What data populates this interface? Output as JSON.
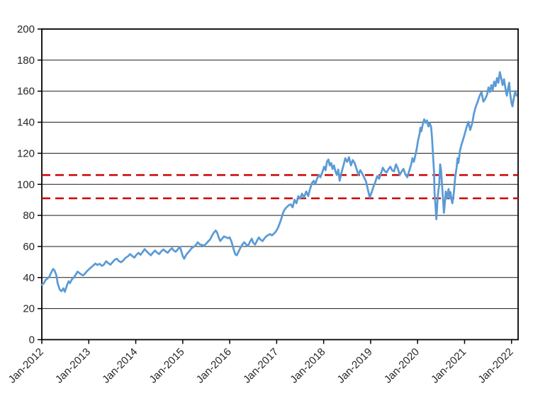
{
  "chart_data": {
    "type": "line",
    "title": "",
    "xlabel": "",
    "ylabel": "",
    "grid": "horizontal",
    "background_color": "#FFFFFF",
    "axis_color": "#000000",
    "gridline_color": "#1a1a1a",
    "x_axis": {
      "min": 2012.0,
      "max": 2022.14,
      "ticks": [
        2012,
        2013,
        2014,
        2015,
        2016,
        2017,
        2018,
        2019,
        2020,
        2021,
        2022
      ],
      "tick_labels": [
        "Jan-2012",
        "Jan-2013",
        "Jan-2014",
        "Jan-2015",
        "Jan-2016",
        "Jan-2017",
        "Jan-2018",
        "Jan-2019",
        "Jan-2020",
        "Jan-2021",
        "Jan-2022"
      ],
      "label_rotation_deg": -45
    },
    "y_axis": {
      "min": 0,
      "max": 200,
      "tick_step": 20,
      "tick_labels": [
        "0",
        "20",
        "40",
        "60",
        "80",
        "100",
        "120",
        "140",
        "160",
        "180",
        "200"
      ]
    },
    "reference_lines": [
      {
        "name": "upper-reference-line",
        "value": 106,
        "color": "#CC0000",
        "style": "dashed"
      },
      {
        "name": "lower-reference-line",
        "value": 91,
        "color": "#CC0000",
        "style": "dashed"
      }
    ],
    "series": [
      {
        "name": "price-series",
        "color": "#5B9BD5",
        "line_width": 2.75,
        "points": [
          [
            2012.0,
            35.3
          ],
          [
            2012.04,
            36.2
          ],
          [
            2012.08,
            38.4
          ],
          [
            2012.12,
            39.3
          ],
          [
            2012.16,
            40.6
          ],
          [
            2012.2,
            43.2
          ],
          [
            2012.24,
            45.5
          ],
          [
            2012.27,
            44.6
          ],
          [
            2012.31,
            41.5
          ],
          [
            2012.34,
            36.0
          ],
          [
            2012.38,
            32.3
          ],
          [
            2012.42,
            31.2
          ],
          [
            2012.46,
            33.0
          ],
          [
            2012.49,
            30.8
          ],
          [
            2012.53,
            34.5
          ],
          [
            2012.57,
            37.6
          ],
          [
            2012.6,
            36.4
          ],
          [
            2012.64,
            38.8
          ],
          [
            2012.68,
            39.9
          ],
          [
            2012.72,
            41.8
          ],
          [
            2012.76,
            43.8
          ],
          [
            2012.8,
            42.9
          ],
          [
            2012.84,
            41.9
          ],
          [
            2012.88,
            41.4
          ],
          [
            2012.92,
            42.6
          ],
          [
            2012.96,
            44.0
          ],
          [
            2013.0,
            45.2
          ],
          [
            2013.04,
            46.3
          ],
          [
            2013.09,
            47.6
          ],
          [
            2013.14,
            49.0
          ],
          [
            2013.18,
            48.1
          ],
          [
            2013.23,
            48.8
          ],
          [
            2013.28,
            47.5
          ],
          [
            2013.32,
            48.3
          ],
          [
            2013.37,
            50.5
          ],
          [
            2013.41,
            49.4
          ],
          [
            2013.46,
            48.3
          ],
          [
            2013.51,
            50.0
          ],
          [
            2013.55,
            51.4
          ],
          [
            2013.6,
            52.1
          ],
          [
            2013.64,
            50.6
          ],
          [
            2013.69,
            49.8
          ],
          [
            2013.74,
            51.2
          ],
          [
            2013.78,
            52.7
          ],
          [
            2013.83,
            53.6
          ],
          [
            2013.88,
            55.1
          ],
          [
            2013.92,
            54.0
          ],
          [
            2013.97,
            52.8
          ],
          [
            2014.01,
            54.5
          ],
          [
            2014.06,
            55.9
          ],
          [
            2014.1,
            54.6
          ],
          [
            2014.15,
            56.6
          ],
          [
            2014.19,
            58.3
          ],
          [
            2014.23,
            56.9
          ],
          [
            2014.28,
            55.4
          ],
          [
            2014.32,
            54.3
          ],
          [
            2014.36,
            55.8
          ],
          [
            2014.41,
            57.4
          ],
          [
            2014.45,
            56.1
          ],
          [
            2014.5,
            55.1
          ],
          [
            2014.54,
            56.8
          ],
          [
            2014.59,
            58.1
          ],
          [
            2014.63,
            56.9
          ],
          [
            2014.68,
            55.9
          ],
          [
            2014.72,
            57.5
          ],
          [
            2014.77,
            58.9
          ],
          [
            2014.81,
            57.4
          ],
          [
            2014.85,
            56.6
          ],
          [
            2014.9,
            58.4
          ],
          [
            2014.94,
            59.7
          ],
          [
            2014.97,
            57.0
          ],
          [
            2015.0,
            53.9
          ],
          [
            2015.03,
            52.1
          ],
          [
            2015.07,
            54.4
          ],
          [
            2015.11,
            55.9
          ],
          [
            2015.15,
            57.4
          ],
          [
            2015.19,
            58.9
          ],
          [
            2015.24,
            59.9
          ],
          [
            2015.28,
            60.9
          ],
          [
            2015.32,
            62.7
          ],
          [
            2015.36,
            61.4
          ],
          [
            2015.41,
            61.0
          ],
          [
            2015.45,
            60.4
          ],
          [
            2015.5,
            61.9
          ],
          [
            2015.54,
            63.2
          ],
          [
            2015.58,
            64.4
          ],
          [
            2015.62,
            66.8
          ],
          [
            2015.66,
            68.8
          ],
          [
            2015.7,
            70.3
          ],
          [
            2015.73,
            69.1
          ],
          [
            2015.77,
            65.5
          ],
          [
            2015.8,
            63.5
          ],
          [
            2015.84,
            65.1
          ],
          [
            2015.88,
            66.5
          ],
          [
            2015.92,
            65.9
          ],
          [
            2015.96,
            65.3
          ],
          [
            2016.0,
            65.8
          ],
          [
            2016.04,
            63.0
          ],
          [
            2016.08,
            58.5
          ],
          [
            2016.12,
            54.9
          ],
          [
            2016.15,
            54.3
          ],
          [
            2016.19,
            56.8
          ],
          [
            2016.23,
            59.2
          ],
          [
            2016.27,
            61.3
          ],
          [
            2016.31,
            62.7
          ],
          [
            2016.35,
            61.2
          ],
          [
            2016.39,
            60.4
          ],
          [
            2016.43,
            62.9
          ],
          [
            2016.47,
            65.0
          ],
          [
            2016.5,
            62.4
          ],
          [
            2016.54,
            61.2
          ],
          [
            2016.58,
            63.6
          ],
          [
            2016.62,
            65.8
          ],
          [
            2016.66,
            64.3
          ],
          [
            2016.7,
            63.5
          ],
          [
            2016.74,
            65.2
          ],
          [
            2016.78,
            66.6
          ],
          [
            2016.82,
            67.3
          ],
          [
            2016.86,
            68.0
          ],
          [
            2016.9,
            67.1
          ],
          [
            2016.94,
            68.2
          ],
          [
            2016.98,
            69.5
          ],
          [
            2017.02,
            71.5
          ],
          [
            2017.06,
            74.5
          ],
          [
            2017.1,
            78.0
          ],
          [
            2017.14,
            82.0
          ],
          [
            2017.18,
            84.2
          ],
          [
            2017.22,
            85.5
          ],
          [
            2017.26,
            86.6
          ],
          [
            2017.3,
            87.1
          ],
          [
            2017.34,
            85.2
          ],
          [
            2017.38,
            90.1
          ],
          [
            2017.42,
            87.8
          ],
          [
            2017.46,
            92.4
          ],
          [
            2017.5,
            90.9
          ],
          [
            2017.54,
            94.0
          ],
          [
            2017.58,
            91.6
          ],
          [
            2017.63,
            95.4
          ],
          [
            2017.67,
            92.4
          ],
          [
            2017.71,
            96.9
          ],
          [
            2017.75,
            100.8
          ],
          [
            2017.79,
            102.3
          ],
          [
            2017.82,
            100.0
          ],
          [
            2017.86,
            103.8
          ],
          [
            2017.9,
            106.1
          ],
          [
            2017.93,
            104.6
          ],
          [
            2017.97,
            107.6
          ],
          [
            2018.01,
            111.4
          ],
          [
            2018.04,
            109.1
          ],
          [
            2018.07,
            114.5
          ],
          [
            2018.1,
            116.0
          ],
          [
            2018.13,
            112.2
          ],
          [
            2018.16,
            113.7
          ],
          [
            2018.19,
            109.9
          ],
          [
            2018.22,
            112.2
          ],
          [
            2018.25,
            108.4
          ],
          [
            2018.28,
            106.1
          ],
          [
            2018.31,
            109.5
          ],
          [
            2018.34,
            102.3
          ],
          [
            2018.38,
            107.6
          ],
          [
            2018.42,
            112.0
          ],
          [
            2018.46,
            116.8
          ],
          [
            2018.5,
            114.5
          ],
          [
            2018.54,
            117.5
          ],
          [
            2018.58,
            112.2
          ],
          [
            2018.62,
            115.6
          ],
          [
            2018.66,
            113.7
          ],
          [
            2018.7,
            110.0
          ],
          [
            2018.74,
            106.1
          ],
          [
            2018.78,
            109.1
          ],
          [
            2018.82,
            107.0
          ],
          [
            2018.86,
            104.6
          ],
          [
            2018.9,
            102.0
          ],
          [
            2018.94,
            96.9
          ],
          [
            2018.98,
            91.6
          ],
          [
            2019.02,
            94.7
          ],
          [
            2019.06,
            98.5
          ],
          [
            2019.1,
            101.5
          ],
          [
            2019.14,
            105.3
          ],
          [
            2019.18,
            103.6
          ],
          [
            2019.22,
            107.0
          ],
          [
            2019.26,
            110.7
          ],
          [
            2019.3,
            108.6
          ],
          [
            2019.34,
            107.6
          ],
          [
            2019.38,
            109.8
          ],
          [
            2019.42,
            111.4
          ],
          [
            2019.46,
            108.9
          ],
          [
            2019.5,
            108.4
          ],
          [
            2019.54,
            112.9
          ],
          [
            2019.58,
            110.2
          ],
          [
            2019.62,
            106.1
          ],
          [
            2019.66,
            108.3
          ],
          [
            2019.7,
            109.9
          ],
          [
            2019.74,
            106.4
          ],
          [
            2019.78,
            104.6
          ],
          [
            2019.82,
            108.4
          ],
          [
            2019.86,
            112.5
          ],
          [
            2019.89,
            116.8
          ],
          [
            2019.92,
            114.5
          ],
          [
            2019.95,
            118.5
          ],
          [
            2019.98,
            122.8
          ],
          [
            2020.01,
            128.2
          ],
          [
            2020.04,
            132.0
          ],
          [
            2020.06,
            136.5
          ],
          [
            2020.08,
            134.2
          ],
          [
            2020.11,
            138.8
          ],
          [
            2020.14,
            141.9
          ],
          [
            2020.17,
            139.6
          ],
          [
            2020.2,
            141.1
          ],
          [
            2020.23,
            137.3
          ],
          [
            2020.26,
            139.5
          ],
          [
            2020.29,
            136.5
          ],
          [
            2020.31,
            128.9
          ],
          [
            2020.33,
            118.3
          ],
          [
            2020.35,
            107.6
          ],
          [
            2020.36,
            95.4
          ],
          [
            2020.38,
            86.3
          ],
          [
            2020.4,
            77.5
          ],
          [
            2020.42,
            87.8
          ],
          [
            2020.44,
            95.4
          ],
          [
            2020.46,
            100.0
          ],
          [
            2020.48,
            112.9
          ],
          [
            2020.5,
            109.1
          ],
          [
            2020.52,
            100.0
          ],
          [
            2020.54,
            90.9
          ],
          [
            2020.56,
            81.7
          ],
          [
            2020.58,
            87.8
          ],
          [
            2020.6,
            95.4
          ],
          [
            2020.62,
            90.9
          ],
          [
            2020.64,
            93.9
          ],
          [
            2020.66,
            97.0
          ],
          [
            2020.68,
            91.0
          ],
          [
            2020.7,
            95.0
          ],
          [
            2020.72,
            90.5
          ],
          [
            2020.74,
            87.8
          ],
          [
            2020.77,
            93.9
          ],
          [
            2020.8,
            104.6
          ],
          [
            2020.83,
            110.7
          ],
          [
            2020.85,
            116.8
          ],
          [
            2020.87,
            113.7
          ],
          [
            2020.9,
            121.3
          ],
          [
            2020.93,
            125.1
          ],
          [
            2020.96,
            128.0
          ],
          [
            2021.0,
            132.0
          ],
          [
            2021.04,
            136.5
          ],
          [
            2021.08,
            140.3
          ],
          [
            2021.12,
            135.0
          ],
          [
            2021.16,
            139.0
          ],
          [
            2021.2,
            145.7
          ],
          [
            2021.24,
            150.2
          ],
          [
            2021.28,
            153.3
          ],
          [
            2021.32,
            157.0
          ],
          [
            2021.36,
            159.4
          ],
          [
            2021.4,
            153.3
          ],
          [
            2021.44,
            155.0
          ],
          [
            2021.48,
            157.9
          ],
          [
            2021.51,
            162.4
          ],
          [
            2021.54,
            159.4
          ],
          [
            2021.57,
            163.9
          ],
          [
            2021.6,
            160.9
          ],
          [
            2021.63,
            166.2
          ],
          [
            2021.66,
            163.2
          ],
          [
            2021.69,
            168.5
          ],
          [
            2021.72,
            165.4
          ],
          [
            2021.75,
            172.3
          ],
          [
            2021.78,
            168.5
          ],
          [
            2021.81,
            163.9
          ],
          [
            2021.84,
            167.7
          ],
          [
            2021.87,
            161.7
          ],
          [
            2021.9,
            157.1
          ],
          [
            2021.92,
            160.9
          ],
          [
            2021.95,
            165.4
          ],
          [
            2021.97,
            158.6
          ],
          [
            2022.0,
            152.5
          ],
          [
            2022.02,
            150.2
          ],
          [
            2022.05,
            155.6
          ],
          [
            2022.08,
            160.1
          ],
          [
            2022.11,
            157.1
          ]
        ]
      }
    ]
  }
}
